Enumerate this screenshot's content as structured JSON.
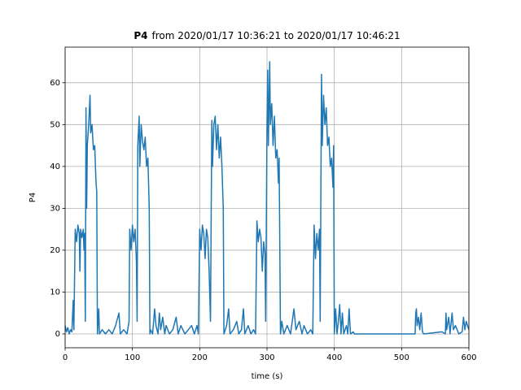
{
  "chart_data": {
    "type": "line",
    "title": {
      "bold": "P4",
      "rest": "from 2020/01/17 10:36:21 to 2020/01/17 10:46:21"
    },
    "xlabel": "time (s)",
    "ylabel": "P4",
    "xlim": [
      0,
      600
    ],
    "ylim": [
      -3.3,
      68.5
    ],
    "xticks": [
      0,
      100,
      200,
      300,
      400,
      500,
      600
    ],
    "yticks": [
      0,
      10,
      20,
      30,
      40,
      50,
      60
    ],
    "grid": true,
    "series": [
      {
        "color": "#1f77b4",
        "x": [
          0,
          2,
          4,
          6,
          8,
          10,
          12,
          13,
          15,
          17,
          19,
          21,
          22,
          23,
          25,
          27,
          28,
          29,
          30,
          31,
          32,
          33,
          35,
          37,
          38,
          40,
          42,
          44,
          45,
          46,
          47,
          48,
          50,
          51,
          55,
          60,
          65,
          70,
          75,
          80,
          82,
          87,
          92,
          95,
          96,
          98,
          100,
          102,
          104,
          106,
          107,
          108,
          110,
          111,
          113,
          115,
          117,
          119,
          121,
          123,
          125,
          126,
          127,
          130,
          133,
          135,
          138,
          140,
          142,
          145,
          148,
          150,
          155,
          160,
          165,
          168,
          172,
          178,
          183,
          188,
          192,
          196,
          198,
          200,
          202,
          204,
          206,
          208,
          210,
          212,
          214,
          216,
          218,
          219,
          221,
          223,
          225,
          227,
          229,
          231,
          233,
          235,
          236,
          240,
          243,
          245,
          250,
          255,
          258,
          262,
          265,
          267,
          272,
          276,
          280,
          283,
          285,
          287,
          289,
          291,
          293,
          295,
          297,
          298,
          300,
          301,
          302,
          304,
          305,
          307,
          309,
          311,
          313,
          315,
          317,
          318,
          320,
          322,
          325,
          330,
          335,
          340,
          343,
          348,
          352,
          355,
          360,
          365,
          368,
          370,
          372,
          374,
          376,
          378,
          379,
          381,
          382,
          384,
          386,
          388,
          390,
          392,
          394,
          396,
          398,
          399,
          400,
          402,
          404,
          406,
          408,
          410,
          412,
          414,
          418,
          420,
          422,
          424,
          428,
          430,
          520,
          521,
          522,
          523,
          525,
          527,
          529,
          531,
          533,
          560,
          565,
          566,
          567,
          570,
          572,
          575,
          577,
          580,
          585,
          590,
          592,
          594,
          596,
          598,
          600
        ],
        "values": [
          2,
          0.5,
          1.5,
          0,
          1,
          0.5,
          8,
          1,
          25,
          22,
          26,
          24,
          15,
          25,
          23,
          25,
          20,
          24,
          3,
          54,
          30,
          45,
          50,
          57,
          48,
          50,
          44,
          45,
          40,
          36,
          34,
          0,
          6,
          0,
          1,
          0,
          1,
          0,
          2,
          5,
          0,
          1,
          0,
          3,
          25,
          20,
          26,
          22,
          25,
          17,
          3,
          45,
          52,
          40,
          50,
          46,
          44,
          47,
          40,
          42,
          30,
          0,
          1,
          0,
          6,
          2,
          0,
          5,
          1,
          4,
          0,
          2,
          0,
          1,
          4,
          0,
          2,
          0,
          1,
          2,
          0,
          2,
          0,
          25,
          20,
          26,
          24,
          18,
          25,
          23,
          15,
          3,
          51,
          40,
          50,
          52,
          44,
          50,
          42,
          47,
          40,
          30,
          0,
          2,
          6,
          0,
          1,
          3,
          0,
          1,
          6,
          0,
          2,
          0,
          1,
          0,
          27,
          22,
          25,
          23,
          15,
          22,
          19,
          3,
          50,
          63,
          45,
          65,
          50,
          55,
          45,
          52,
          42,
          44,
          36,
          42,
          0,
          3,
          0,
          2,
          0,
          6,
          1,
          3,
          0,
          2,
          0,
          1,
          0,
          26,
          18,
          24,
          20,
          25,
          3,
          62,
          45,
          57,
          50,
          54,
          45,
          47,
          40,
          42,
          35,
          45,
          0,
          6,
          0,
          3,
          7,
          0,
          5,
          0,
          2,
          0,
          6,
          0,
          0.5,
          0,
          0,
          5,
          6,
          2,
          4,
          1,
          5,
          0.5,
          0,
          0.5,
          0,
          5,
          1,
          4,
          0,
          5,
          1,
          2,
          0,
          0.5,
          4,
          1,
          3,
          2,
          1
        ]
      }
    ]
  }
}
